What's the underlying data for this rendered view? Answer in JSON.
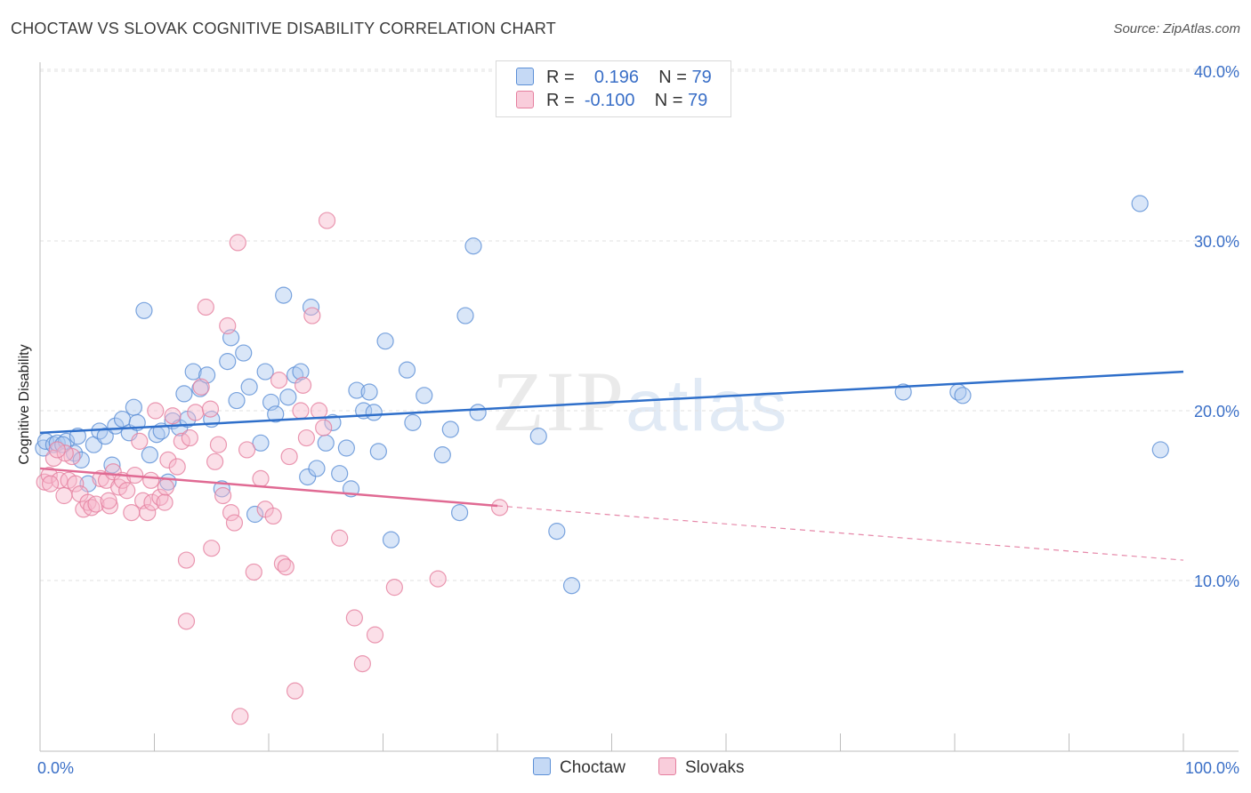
{
  "title": "CHOCTAW VS SLOVAK COGNITIVE DISABILITY CORRELATION CHART",
  "source": "Source: ZipAtlas.com",
  "watermark_zip": "ZIP",
  "watermark_atlas": "atlas",
  "legend": {
    "r_label": "R =",
    "n_label": "N =",
    "rows": [
      {
        "r": "0.196",
        "n": "79"
      },
      {
        "r": "-0.100",
        "n": "79"
      }
    ]
  },
  "colors": {
    "choctaw_fill": "#aac8f0",
    "choctaw_stroke": "#5b8fd6",
    "choctaw_line": "#2f6fca",
    "slovaks_fill": "#f6b8cb",
    "slovaks_stroke": "#e57f9f",
    "slovaks_line": "#e06a93",
    "tick": "#3a6fc7"
  },
  "chart_data": {
    "type": "scatter",
    "title": "CHOCTAW VS SLOVAK COGNITIVE DISABILITY CORRELATION CHART",
    "xlabel": "",
    "ylabel": "Cognitive Disability",
    "xlim": [
      0,
      100
    ],
    "ylim": [
      0,
      42
    ],
    "x_tick_labels": [
      "0.0%",
      "100.0%"
    ],
    "y_ticks": [
      10,
      20,
      30,
      40
    ],
    "y_tick_labels": [
      "10.0%",
      "20.0%",
      "30.0%",
      "40.0%"
    ],
    "grid": true,
    "legend_position": "top-center",
    "series": [
      {
        "name": "Choctaw",
        "trend": {
          "x0": 0,
          "y0": 18.7,
          "x1": 100,
          "y1": 22.3
        },
        "points": [
          [
            0.3,
            17.8
          ],
          [
            0.5,
            18.2
          ],
          [
            1.2,
            18.0
          ],
          [
            1.5,
            18.1
          ],
          [
            2.3,
            18.2
          ],
          [
            3.0,
            17.5
          ],
          [
            3.3,
            18.5
          ],
          [
            3.6,
            17.1
          ],
          [
            4.2,
            15.7
          ],
          [
            4.7,
            18.0
          ],
          [
            5.2,
            18.8
          ],
          [
            5.7,
            18.5
          ],
          [
            6.3,
            16.8
          ],
          [
            6.6,
            19.1
          ],
          [
            7.2,
            19.5
          ],
          [
            7.8,
            18.7
          ],
          [
            8.2,
            20.2
          ],
          [
            8.5,
            19.3
          ],
          [
            9.1,
            25.9
          ],
          [
            9.6,
            17.4
          ],
          [
            10.2,
            18.6
          ],
          [
            10.6,
            18.8
          ],
          [
            11.2,
            15.8
          ],
          [
            11.6,
            19.4
          ],
          [
            12.2,
            19.0
          ],
          [
            12.6,
            21.0
          ],
          [
            12.9,
            19.5
          ],
          [
            13.4,
            22.3
          ],
          [
            14.0,
            21.3
          ],
          [
            14.6,
            22.1
          ],
          [
            15.0,
            19.5
          ],
          [
            15.9,
            15.4
          ],
          [
            16.4,
            22.9
          ],
          [
            16.7,
            24.3
          ],
          [
            17.2,
            20.6
          ],
          [
            17.8,
            23.4
          ],
          [
            18.3,
            21.4
          ],
          [
            18.8,
            13.9
          ],
          [
            19.3,
            18.1
          ],
          [
            19.7,
            22.3
          ],
          [
            20.2,
            20.5
          ],
          [
            20.6,
            19.8
          ],
          [
            21.3,
            26.8
          ],
          [
            21.7,
            20.8
          ],
          [
            22.3,
            22.1
          ],
          [
            22.8,
            22.3
          ],
          [
            23.4,
            16.1
          ],
          [
            23.7,
            26.1
          ],
          [
            24.2,
            16.6
          ],
          [
            25.0,
            18.1
          ],
          [
            25.6,
            19.3
          ],
          [
            26.2,
            16.3
          ],
          [
            26.8,
            17.8
          ],
          [
            27.2,
            15.4
          ],
          [
            27.7,
            21.2
          ],
          [
            28.3,
            20.0
          ],
          [
            28.8,
            21.1
          ],
          [
            29.2,
            19.9
          ],
          [
            29.6,
            17.6
          ],
          [
            30.2,
            24.1
          ],
          [
            30.7,
            12.4
          ],
          [
            32.1,
            22.4
          ],
          [
            32.6,
            19.3
          ],
          [
            33.6,
            20.9
          ],
          [
            35.2,
            17.4
          ],
          [
            35.9,
            18.9
          ],
          [
            36.7,
            14.0
          ],
          [
            37.2,
            25.6
          ],
          [
            37.9,
            29.7
          ],
          [
            38.3,
            19.9
          ],
          [
            43.6,
            18.5
          ],
          [
            45.2,
            12.9
          ],
          [
            46.5,
            9.7
          ],
          [
            75.5,
            21.1
          ],
          [
            80.3,
            21.1
          ],
          [
            80.7,
            20.9
          ],
          [
            96.2,
            32.2
          ],
          [
            98.0,
            17.7
          ],
          [
            2.0,
            18.0
          ]
        ]
      },
      {
        "name": "Slovaks",
        "trend": {
          "x0": 0,
          "y0": 16.6,
          "x1": 40,
          "y1": 14.4,
          "dash_x0": 40,
          "dash_y0": 14.4,
          "dash_x1": 100,
          "dash_y1": 11.2
        },
        "points": [
          [
            0.4,
            15.8
          ],
          [
            0.8,
            16.2
          ],
          [
            1.2,
            17.2
          ],
          [
            1.7,
            15.9
          ],
          [
            2.1,
            15.0
          ],
          [
            2.5,
            15.9
          ],
          [
            2.8,
            17.3
          ],
          [
            3.1,
            15.7
          ],
          [
            3.5,
            15.1
          ],
          [
            3.8,
            14.2
          ],
          [
            4.2,
            14.6
          ],
          [
            4.5,
            14.3
          ],
          [
            4.9,
            14.5
          ],
          [
            5.3,
            16.0
          ],
          [
            5.8,
            15.9
          ],
          [
            6.1,
            14.4
          ],
          [
            6.4,
            16.4
          ],
          [
            6.9,
            15.5
          ],
          [
            7.2,
            15.9
          ],
          [
            7.6,
            15.3
          ],
          [
            8.0,
            14.0
          ],
          [
            8.3,
            16.2
          ],
          [
            8.7,
            18.2
          ],
          [
            9.0,
            14.7
          ],
          [
            9.4,
            14.0
          ],
          [
            9.8,
            14.6
          ],
          [
            10.1,
            20.0
          ],
          [
            10.5,
            14.9
          ],
          [
            10.9,
            14.6
          ],
          [
            11.2,
            17.1
          ],
          [
            11.6,
            19.7
          ],
          [
            12.0,
            16.7
          ],
          [
            12.4,
            18.2
          ],
          [
            12.8,
            11.2
          ],
          [
            13.1,
            18.4
          ],
          [
            13.6,
            19.9
          ],
          [
            14.1,
            21.4
          ],
          [
            14.5,
            26.1
          ],
          [
            14.9,
            20.1
          ],
          [
            15.3,
            17.0
          ],
          [
            15.6,
            18.0
          ],
          [
            16.0,
            15.0
          ],
          [
            16.4,
            25.0
          ],
          [
            16.7,
            14.0
          ],
          [
            17.0,
            13.4
          ],
          [
            17.3,
            29.9
          ],
          [
            18.7,
            10.5
          ],
          [
            19.3,
            16.0
          ],
          [
            19.7,
            14.2
          ],
          [
            20.4,
            13.8
          ],
          [
            20.9,
            21.8
          ],
          [
            21.2,
            11.0
          ],
          [
            21.5,
            10.8
          ],
          [
            21.8,
            17.3
          ],
          [
            22.3,
            3.5
          ],
          [
            22.8,
            20.0
          ],
          [
            23.3,
            18.4
          ],
          [
            23.8,
            25.6
          ],
          [
            24.8,
            19.0
          ],
          [
            25.1,
            31.2
          ],
          [
            26.2,
            12.5
          ],
          [
            27.5,
            7.8
          ],
          [
            28.2,
            5.1
          ],
          [
            29.3,
            6.8
          ],
          [
            31.0,
            9.6
          ],
          [
            34.8,
            10.1
          ],
          [
            40.2,
            14.3
          ],
          [
            12.8,
            7.6
          ],
          [
            17.5,
            2.0
          ],
          [
            23.0,
            21.5
          ],
          [
            0.9,
            15.7
          ],
          [
            2.2,
            17.5
          ],
          [
            6.0,
            14.7
          ],
          [
            9.7,
            15.9
          ],
          [
            15.0,
            11.9
          ],
          [
            18.1,
            17.7
          ],
          [
            24.4,
            20.0
          ],
          [
            1.5,
            17.7
          ],
          [
            11.0,
            15.5
          ]
        ]
      }
    ]
  },
  "bottom_legend": [
    {
      "label": "Choctaw"
    },
    {
      "label": "Slovaks"
    }
  ]
}
